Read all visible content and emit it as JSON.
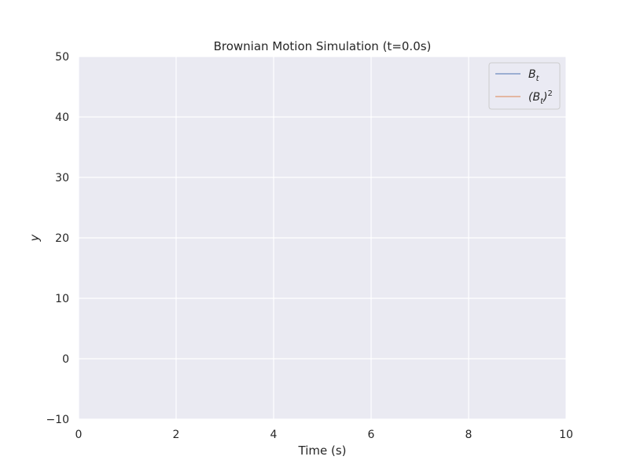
{
  "chart_data": {
    "type": "line",
    "title": "Brownian Motion Simulation (t=0.0s)",
    "xlabel": "Time (s)",
    "ylabel": "y",
    "xlim": [
      0,
      10
    ],
    "ylim": [
      -10,
      50
    ],
    "x_ticks": [
      0,
      2,
      4,
      6,
      8,
      10
    ],
    "x_tick_labels": [
      "0",
      "2",
      "4",
      "6",
      "8",
      "10"
    ],
    "y_ticks": [
      -10,
      0,
      10,
      20,
      30,
      40,
      50
    ],
    "y_tick_labels": [
      "−10",
      "0",
      "10",
      "20",
      "30",
      "40",
      "50"
    ],
    "grid": true,
    "legend_placement": "top-right",
    "series": [
      {
        "name": "B",
        "subscript": "t",
        "color": "#4c72b0",
        "x": [],
        "y": []
      },
      {
        "name": "(B",
        "subscript": "t",
        "suffix": ")",
        "superscript": "2",
        "color": "#dd8452",
        "x": [],
        "y": []
      }
    ],
    "colors": {
      "plot_background": "#eaeaf2",
      "grid": "#ffffff"
    }
  }
}
